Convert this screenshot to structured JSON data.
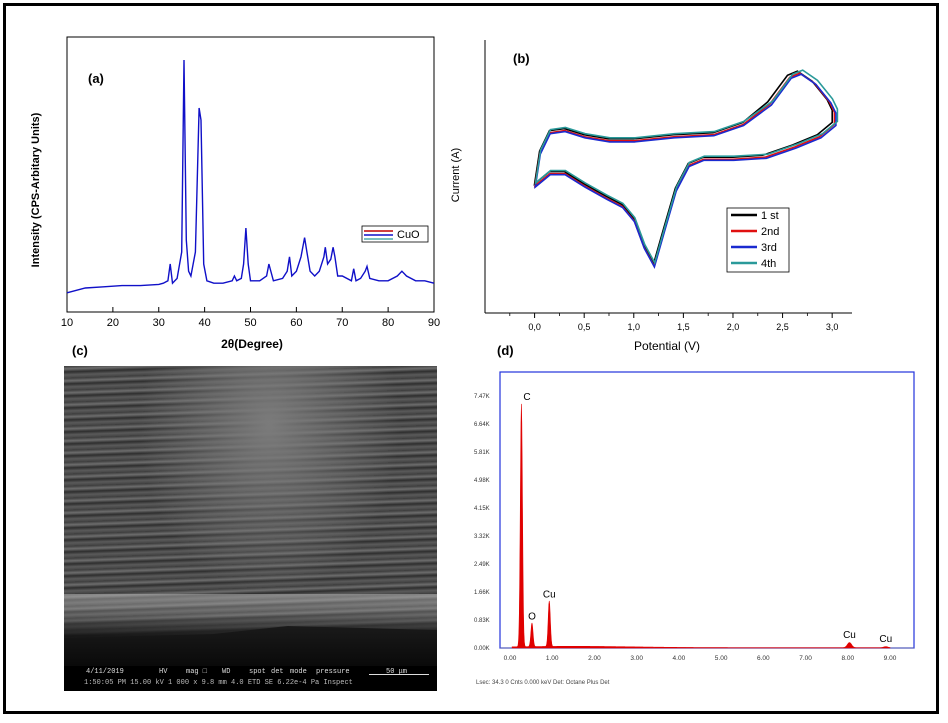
{
  "chart_data": [
    {
      "panel_label": "(a)",
      "type": "line",
      "xlabel": "2θ(Degree)",
      "ylabel": "Intensity (CPS-Arbitary Units)",
      "xlim": [
        10,
        90
      ],
      "x_ticks": [
        "10",
        "20",
        "30",
        "40",
        "50",
        "60",
        "70",
        "80",
        "90"
      ],
      "legend": "CuO",
      "legend_position": "right",
      "series": [
        {
          "name": "CuO",
          "color": "#1010c8",
          "x": [
            10,
            14,
            18,
            22,
            26,
            30,
            31,
            32,
            32.5,
            33,
            34,
            35,
            35.5,
            36,
            36.5,
            37,
            38,
            38.8,
            39.2,
            39.8,
            40.5,
            42,
            44,
            46,
            46.5,
            47,
            48,
            48.5,
            49,
            49.5,
            50,
            52,
            53.5,
            54,
            55,
            57,
            58,
            58.5,
            59,
            60,
            61,
            61.8,
            62.3,
            63,
            64,
            65,
            66,
            66.3,
            66.8,
            67.5,
            68,
            68.4,
            69,
            70,
            72,
            72.5,
            73,
            74,
            75,
            75.4,
            76,
            78,
            80,
            82,
            83,
            84,
            86,
            88,
            90
          ],
          "y": [
            0.03,
            0.05,
            0.055,
            0.06,
            0.06,
            0.065,
            0.07,
            0.08,
            0.15,
            0.07,
            0.09,
            0.2,
            1.0,
            0.25,
            0.12,
            0.1,
            0.2,
            0.8,
            0.75,
            0.15,
            0.08,
            0.07,
            0.07,
            0.08,
            0.1,
            0.08,
            0.09,
            0.15,
            0.3,
            0.15,
            0.08,
            0.08,
            0.1,
            0.15,
            0.08,
            0.09,
            0.12,
            0.18,
            0.1,
            0.12,
            0.18,
            0.26,
            0.2,
            0.12,
            0.1,
            0.12,
            0.18,
            0.22,
            0.15,
            0.17,
            0.22,
            0.18,
            0.1,
            0.1,
            0.08,
            0.13,
            0.08,
            0.09,
            0.12,
            0.14,
            0.09,
            0.08,
            0.08,
            0.1,
            0.12,
            0.1,
            0.08,
            0.08,
            0.07
          ]
        }
      ]
    },
    {
      "panel_label": "(b)",
      "type": "line",
      "xlabel": "Potential (V)",
      "ylabel": "Current (A)",
      "xlim": [
        -0.5,
        3.2
      ],
      "x_ticks": [
        "0,0",
        "0,5",
        "1,0",
        "1,5",
        "2,0",
        "2,5",
        "3,0"
      ],
      "legend_position": "lower-right",
      "series": [
        {
          "name": "1 st",
          "color": "#000000"
        },
        {
          "name": "2nd",
          "color": "#e01010"
        },
        {
          "name": "3rd",
          "color": "#1a2ad0"
        },
        {
          "name": "4th",
          "color": "#2a9a9a"
        }
      ]
    },
    {
      "panel_label": "(d)",
      "type": "bar",
      "y_ticks": [
        "0.00K",
        "0.83K",
        "1.66K",
        "2.49K",
        "3.32K",
        "4.15K",
        "4.98K",
        "5.81K",
        "6.64K",
        "7.47K"
      ],
      "x_ticks": [
        "0.00",
        "1.00",
        "2.00",
        "3.00",
        "4.00",
        "5.00",
        "6.00",
        "7.00",
        "8.00",
        "9.00"
      ],
      "peaks": [
        {
          "label": "C",
          "energy": 0.27,
          "counts": 7.2
        },
        {
          "label": "O",
          "energy": 0.52,
          "counts": 0.7
        },
        {
          "label": "Cu",
          "energy": 0.93,
          "counts": 1.35
        },
        {
          "label": "Cu",
          "energy": 8.04,
          "counts": 0.15
        },
        {
          "label": "Cu",
          "energy": 8.9,
          "counts": 0.03
        }
      ],
      "color": "#e00000",
      "footer": "Lsec: 34.3 0 Cnts 0.000 keV Det: Octane Plus Det"
    }
  ],
  "sem_panel": {
    "panel_label": "(c)",
    "databar": {
      "date": "4/11/2019",
      "hv": "HV",
      "mag": "mag □",
      "wd": "WD",
      "spot": "spot",
      "det": "det",
      "mode": "mode",
      "pressure": "pressure",
      "scale": "50 μm",
      "row2": "1:50:05 PM  15.00 kV  1 000 x  9.8 mm  4.0  ETD  SE  6.22e-4 Pa   Inspect"
    }
  }
}
